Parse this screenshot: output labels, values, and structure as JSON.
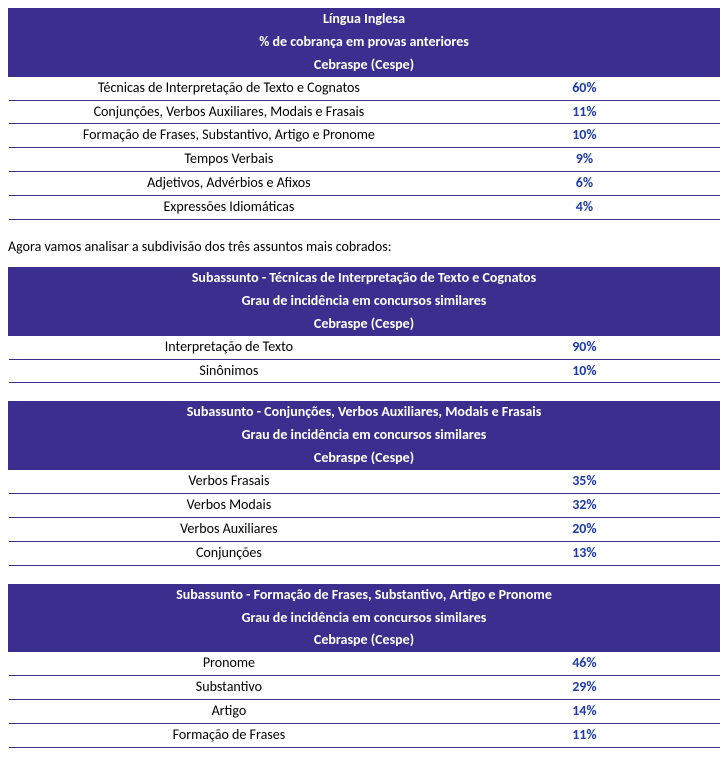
{
  "colors": {
    "header_bg": "#3b2e8e",
    "header_text": "#ffffff",
    "border": "#3b2e8e",
    "pct_text": "#1f3ba8",
    "body_text": "#000000",
    "page_bg": "#ffffff"
  },
  "typography": {
    "font_family": "Calibri, Arial, sans-serif",
    "base_fontsize": 14,
    "header_fontweight": "bold",
    "pct_fontweight": "bold"
  },
  "intro_text": "Agora vamos analisar a subdivisão dos três assuntos mais cobrados:",
  "tables": [
    {
      "header_lines": [
        "Língua Inglesa",
        "% de cobrança em provas anteriores",
        "Cebraspe (Cespe)"
      ],
      "rows": [
        {
          "topic": "Técnicas de Interpretação de Texto e Cognatos",
          "pct": "60%"
        },
        {
          "topic": "Conjunções, Verbos Auxiliares, Modais e Frasais",
          "pct": "11%"
        },
        {
          "topic": "Formação de Frases, Substantivo, Artigo e Pronome",
          "pct": "10%"
        },
        {
          "topic": "Tempos Verbais",
          "pct": "9%"
        },
        {
          "topic": "Adjetivos, Advérbios e Afixos",
          "pct": "6%"
        },
        {
          "topic": "Expressões Idiomáticas",
          "pct": "4%"
        }
      ]
    },
    {
      "header_lines": [
        "Subassunto - Técnicas de Interpretação de Texto e Cognatos",
        "Grau de incidência em concursos similares",
        "Cebraspe (Cespe)"
      ],
      "rows": [
        {
          "topic": "Interpretação de Texto",
          "pct": "90%"
        },
        {
          "topic": "Sinônimos",
          "pct": "10%"
        }
      ]
    },
    {
      "header_lines": [
        "Subassunto  - Conjunções, Verbos Auxiliares, Modais e Frasais",
        "Grau de incidência em concursos similares",
        "Cebraspe (Cespe)"
      ],
      "rows": [
        {
          "topic": "Verbos Frasais",
          "pct": "35%"
        },
        {
          "topic": "Verbos Modais",
          "pct": "32%"
        },
        {
          "topic": "Verbos Auxiliares",
          "pct": "20%"
        },
        {
          "topic": "Conjunções",
          "pct": "13%"
        }
      ]
    },
    {
      "header_lines": [
        "Subassunto  - Formação de Frases, Substantivo, Artigo e Pronome",
        "Grau de incidência em concursos similares",
        "Cebraspe (Cespe)"
      ],
      "rows": [
        {
          "topic": "Pronome",
          "pct": "46%"
        },
        {
          "topic": "Substantivo",
          "pct": "29%"
        },
        {
          "topic": "Artigo",
          "pct": "14%"
        },
        {
          "topic": "Formação de Frases",
          "pct": "11%"
        }
      ]
    }
  ]
}
